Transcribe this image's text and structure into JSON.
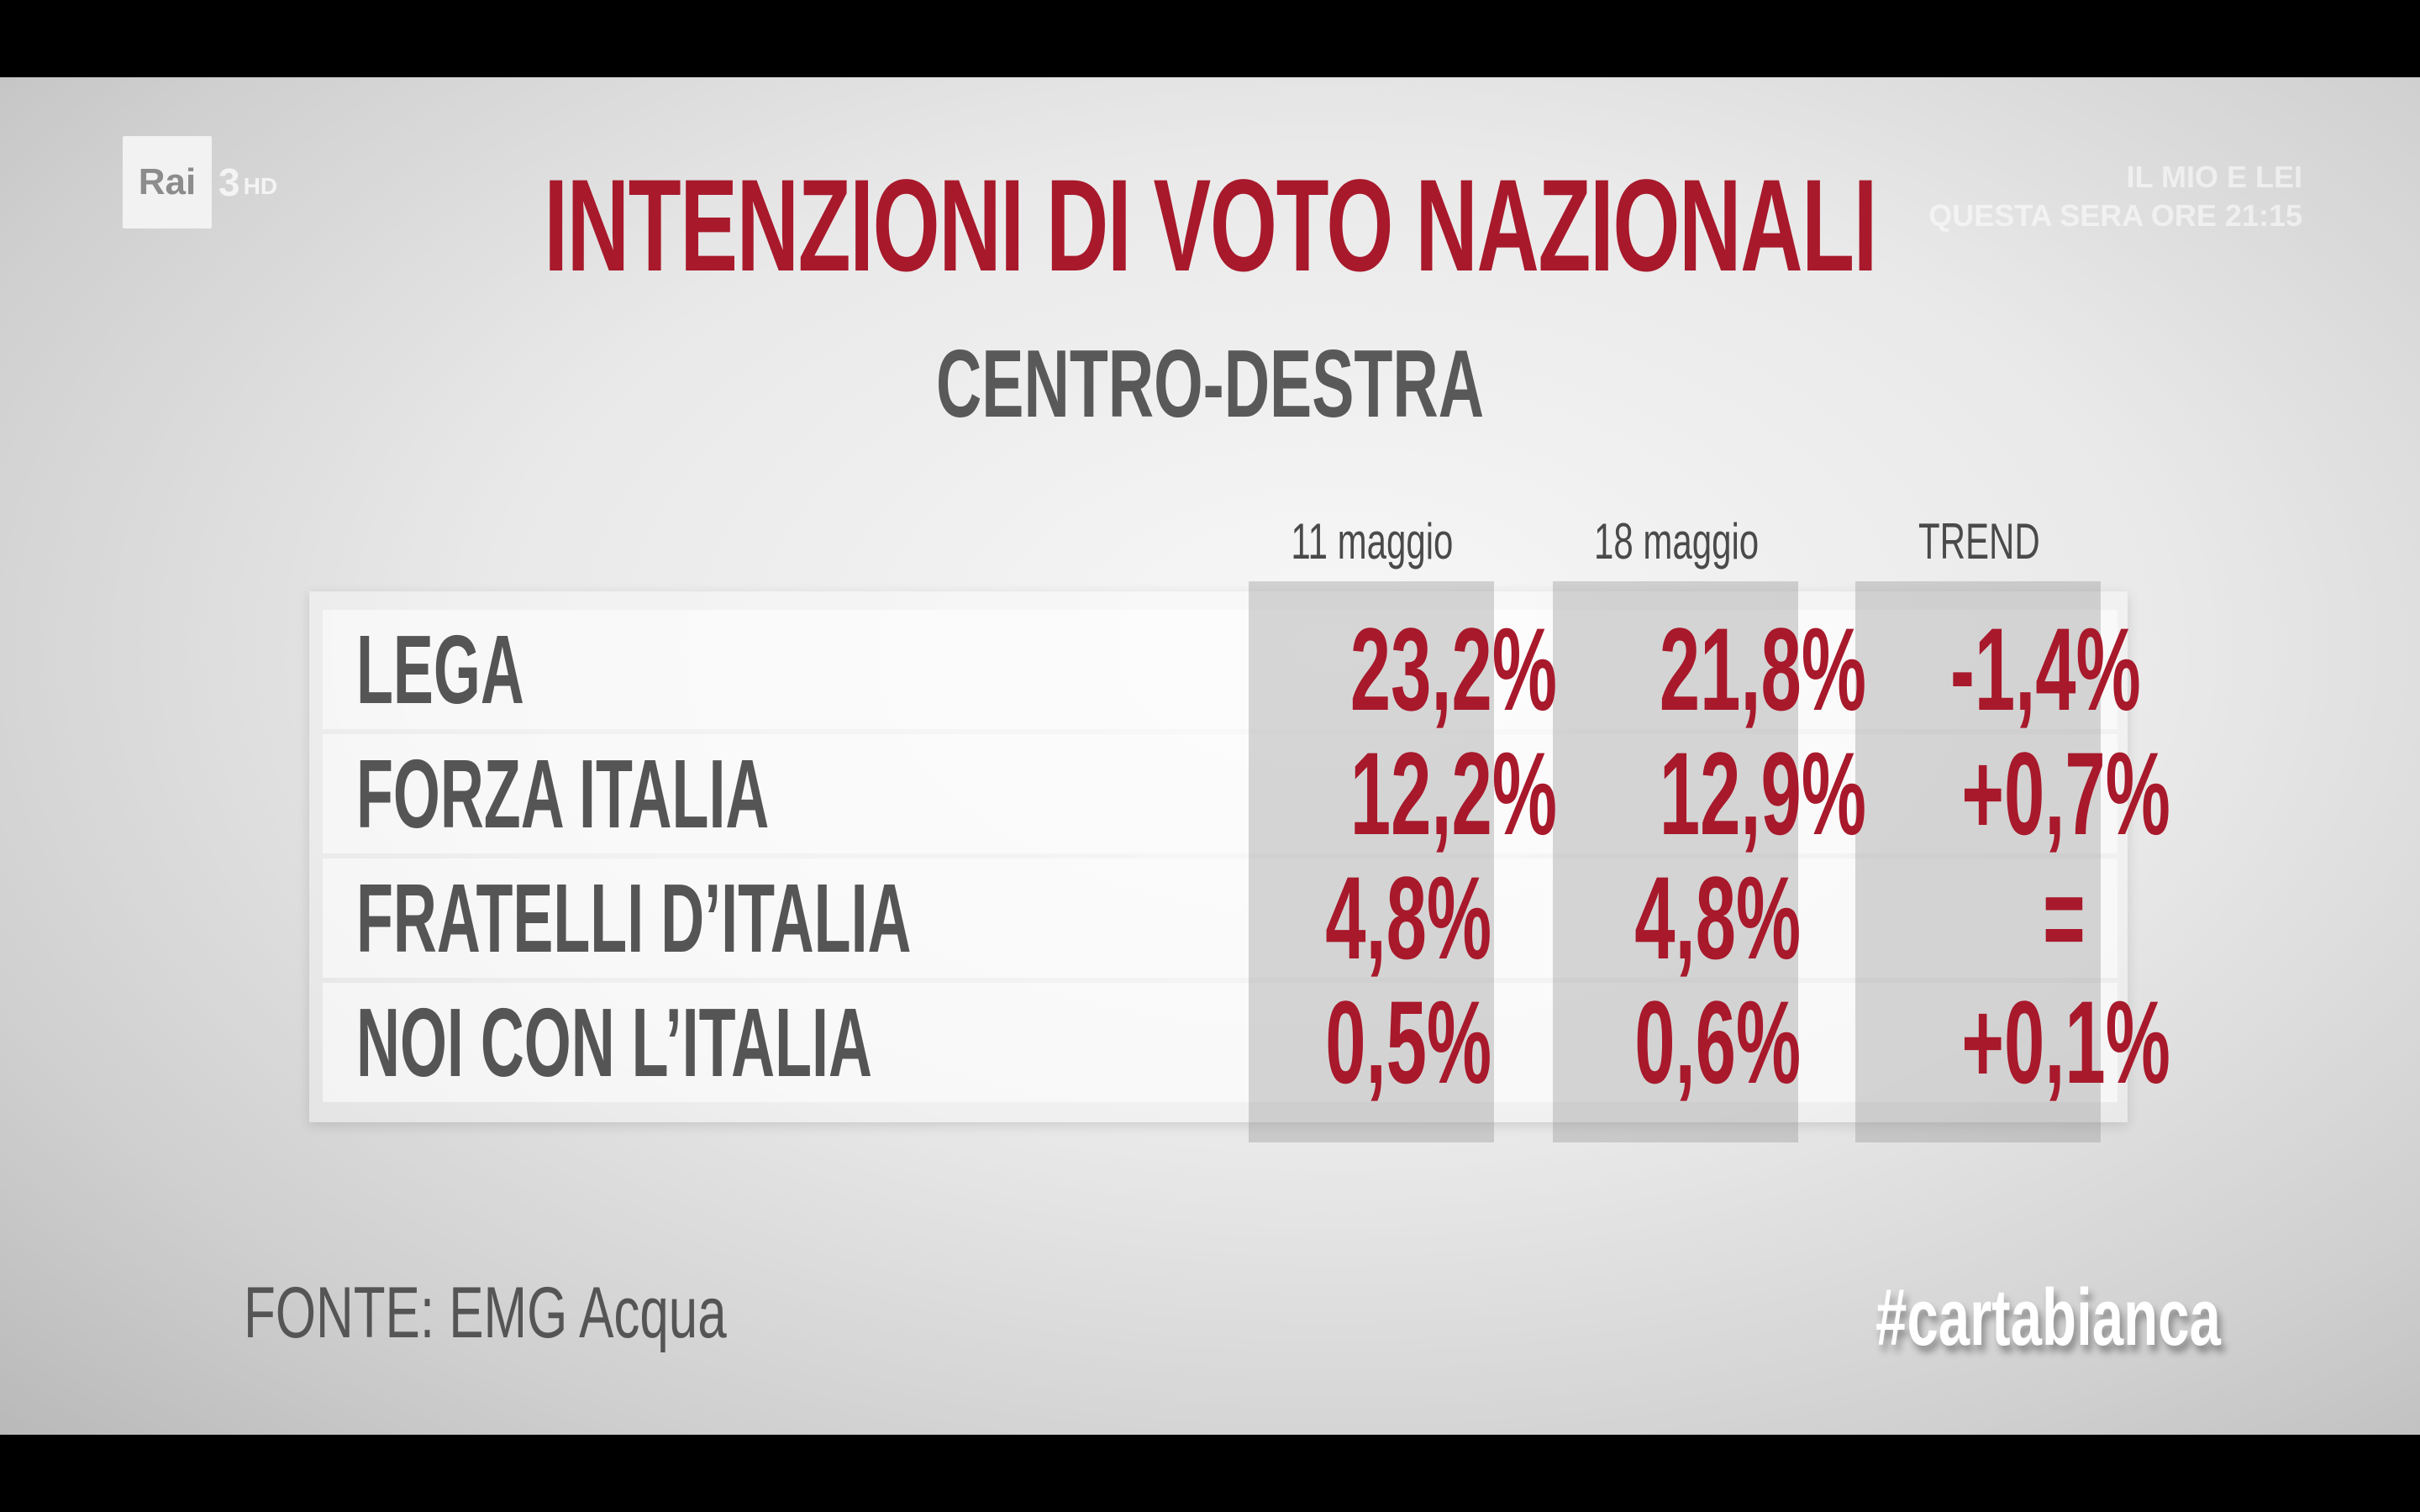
{
  "channel": {
    "logo_text": "Rai",
    "logo_number": "3",
    "logo_hd": "HD"
  },
  "promo": {
    "line1": "IL MIO E LEI",
    "line2": "QUESTA SERA ORE 21:15"
  },
  "chart_data": {
    "type": "table",
    "title": "INTENZIONI DI VOTO NAZIONALI",
    "subtitle": "CENTRO-DESTRA",
    "columns": [
      "11 maggio",
      "18 maggio",
      "TREND"
    ],
    "rows": [
      {
        "label": "LEGA",
        "values": [
          "23,2%",
          "21,8%",
          "-1,4%"
        ]
      },
      {
        "label": "FORZA ITALIA",
        "values": [
          "12,2%",
          "12,9%",
          "+0,7%"
        ]
      },
      {
        "label": "FRATELLI D’ITALIA",
        "values": [
          "4,8%",
          "4,8%",
          "="
        ]
      },
      {
        "label": "NOI CON L’ITALIA",
        "values": [
          "0,5%",
          "0,6%",
          "+0,1%"
        ]
      }
    ],
    "source": "FONTE: EMG Acqua"
  },
  "hashtag": "#cartabianca",
  "colors": {
    "title": "#a8192b",
    "values": "#a8192b",
    "labels": "#555555",
    "background": "#e9e9e9"
  }
}
